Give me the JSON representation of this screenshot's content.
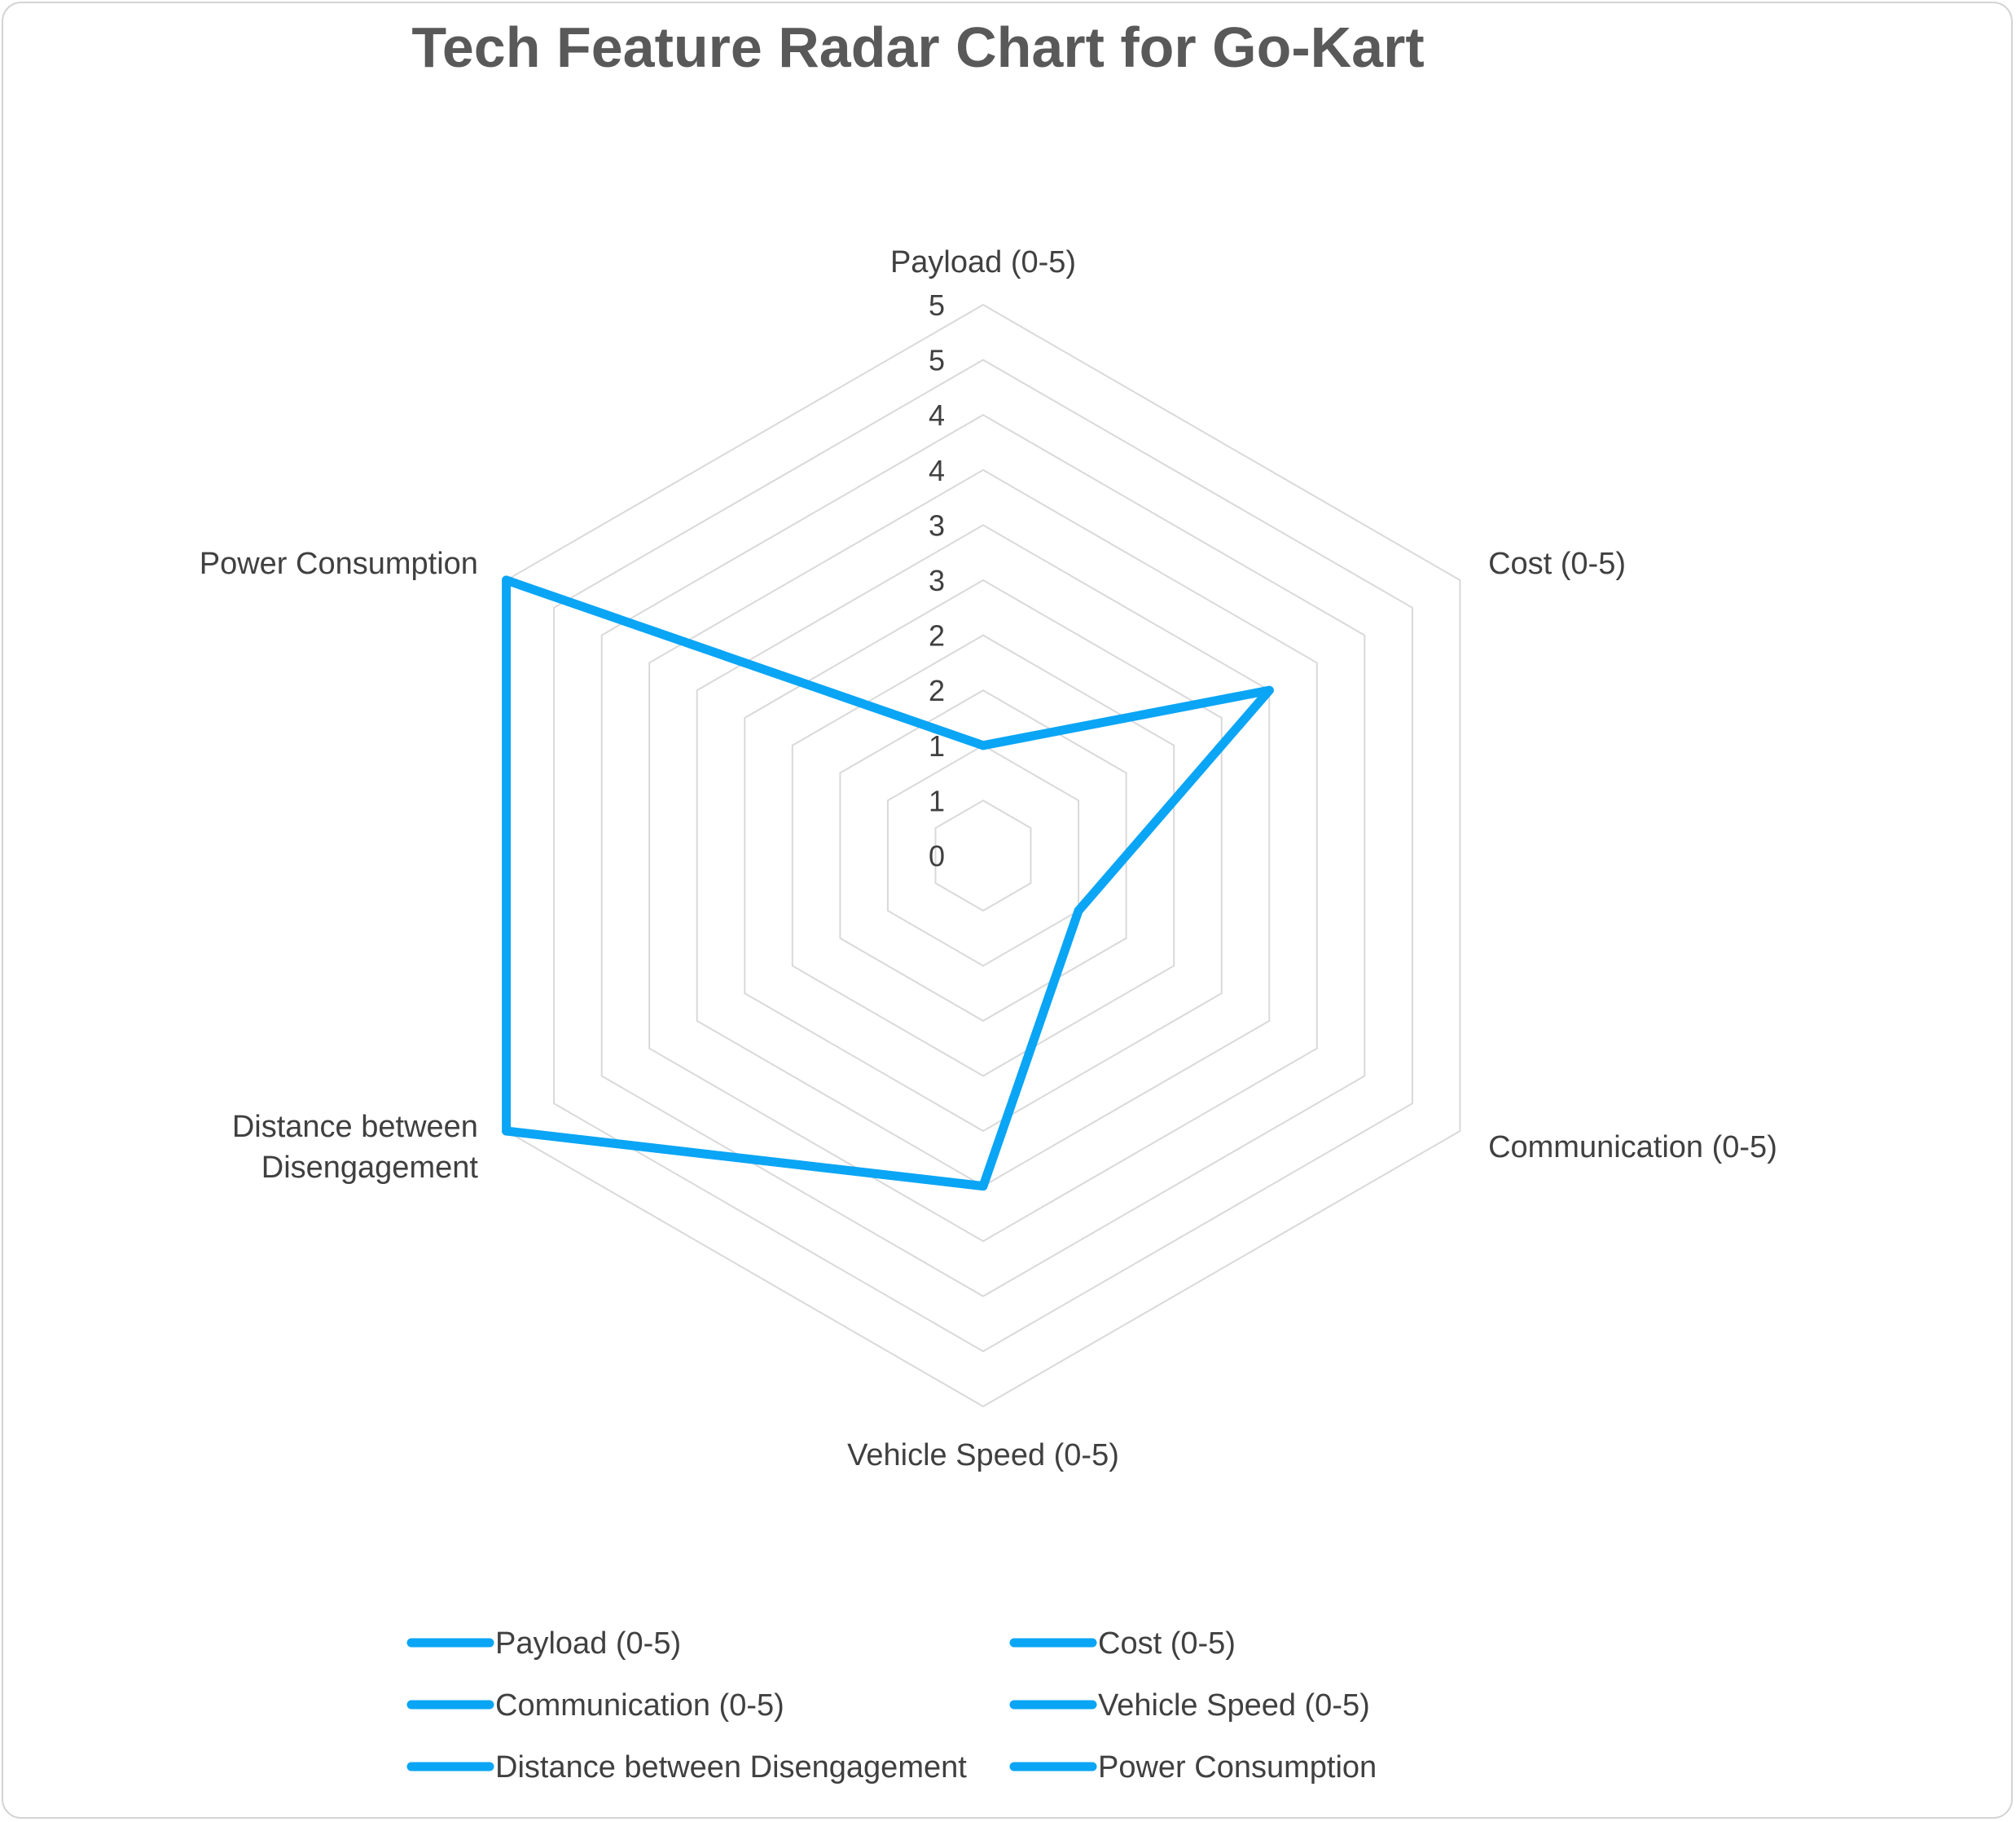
{
  "chart_data": {
    "type": "radar",
    "title": "Tech Feature Radar Chart for Go-Kart",
    "categories": [
      "Payload (0-5)",
      "Cost (0-5)",
      "Communication (0-5)",
      "Vehicle Speed (0-5)",
      "Distance between Disengagement",
      "Power Consumption"
    ],
    "category_label_lines": [
      [
        "Payload (0-5)"
      ],
      [
        "Cost (0-5)"
      ],
      [
        "Communication (0-5)"
      ],
      [
        "Vehicle Speed (0-5)"
      ],
      [
        "Distance between",
        "Disengagement"
      ],
      [
        "Power Consumption"
      ]
    ],
    "values": [
      1,
      3,
      1,
      3,
      5,
      5
    ],
    "r_range": [
      0,
      5
    ],
    "ring_step": 0.5,
    "tick_labels": [
      "0",
      "1",
      "1",
      "2",
      "2",
      "3",
      "3",
      "4",
      "4",
      "5",
      "5"
    ],
    "grid": true,
    "series_color": "#0aa5f5",
    "grid_color": "#d9d9d9",
    "legend": {
      "position": "bottom",
      "entries": [
        "Payload (0-5)",
        "Cost (0-5)",
        "Communication (0-5)",
        "Vehicle Speed (0-5)",
        "Distance between Disengagement",
        "Power Consumption"
      ]
    }
  }
}
